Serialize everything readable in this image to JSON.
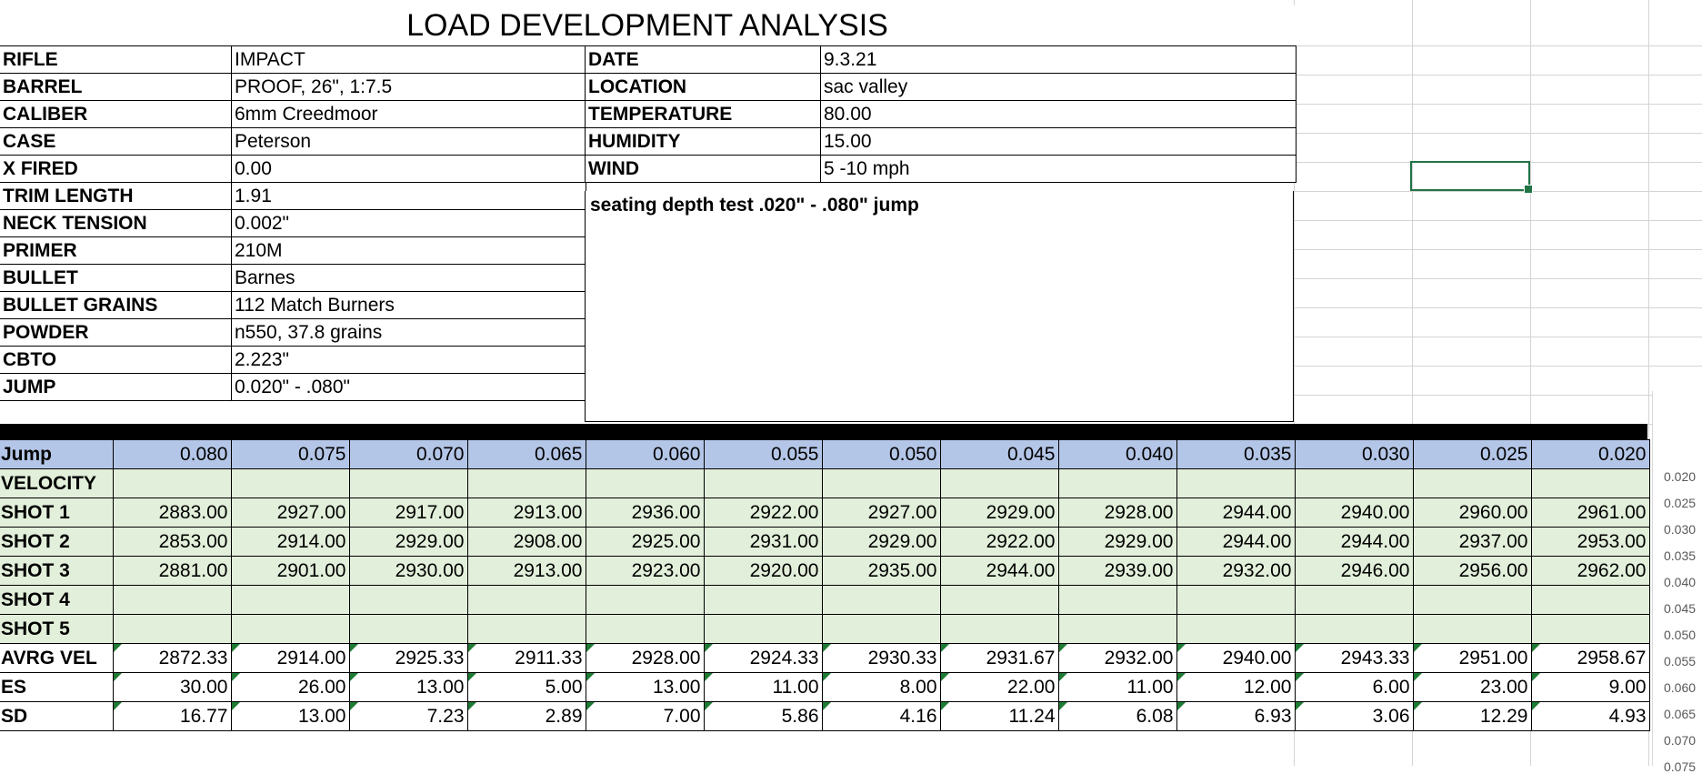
{
  "title": "LOAD DEVELOPMENT ANALYSIS",
  "info_left": [
    {
      "label": "RIFLE",
      "value": "IMPACT"
    },
    {
      "label": "BARREL",
      "value": "PROOF, 26\", 1:7.5"
    },
    {
      "label": "CALIBER",
      "value": "6mm Creedmoor"
    },
    {
      "label": "CASE",
      "value": "Peterson"
    },
    {
      "label": "X FIRED",
      "value": "0.00"
    },
    {
      "label": "TRIM LENGTH",
      "value": "1.91"
    },
    {
      "label": "NECK TENSION",
      "value": "0.002\""
    },
    {
      "label": "PRIMER",
      "value": "210M"
    },
    {
      "label": "BULLET",
      "value": "Barnes"
    },
    {
      "label": "BULLET GRAINS",
      "value": "112 Match Burners"
    },
    {
      "label": "POWDER",
      "value": "n550, 37.8 grains"
    },
    {
      "label": "CBTO",
      "value": "2.223\""
    },
    {
      "label": "JUMP",
      "value": "0.020\" - .080\""
    }
  ],
  "info_right": [
    {
      "label": "DATE",
      "value": "9.3.21"
    },
    {
      "label": "LOCATION",
      "value": "sac valley"
    },
    {
      "label": "TEMPERATURE",
      "value": "80.00"
    },
    {
      "label": "HUMIDITY",
      "value": "15.00"
    },
    {
      "label": "WIND",
      "value": "5 -10 mph"
    }
  ],
  "notes": "seating depth test .020\" - .080\" jump",
  "data_table": {
    "jump_label": "Jump",
    "jumps": [
      "0.080",
      "0.075",
      "0.070",
      "0.065",
      "0.060",
      "0.055",
      "0.050",
      "0.045",
      "0.040",
      "0.035",
      "0.030",
      "0.025",
      "0.020"
    ],
    "velocity_label": "VELOCITY",
    "shots": [
      {
        "label": "SHOT 1",
        "values": [
          "2883.00",
          "2927.00",
          "2917.00",
          "2913.00",
          "2936.00",
          "2922.00",
          "2927.00",
          "2929.00",
          "2928.00",
          "2944.00",
          "2940.00",
          "2960.00",
          "2961.00"
        ]
      },
      {
        "label": "SHOT 2",
        "values": [
          "2853.00",
          "2914.00",
          "2929.00",
          "2908.00",
          "2925.00",
          "2931.00",
          "2929.00",
          "2922.00",
          "2929.00",
          "2944.00",
          "2944.00",
          "2937.00",
          "2953.00"
        ]
      },
      {
        "label": "SHOT 3",
        "values": [
          "2881.00",
          "2901.00",
          "2930.00",
          "2913.00",
          "2923.00",
          "2920.00",
          "2935.00",
          "2944.00",
          "2939.00",
          "2932.00",
          "2946.00",
          "2956.00",
          "2962.00"
        ]
      },
      {
        "label": "SHOT 4",
        "values": [
          "",
          "",
          "",
          "",
          "",
          "",
          "",
          "",
          "",
          "",
          "",
          "",
          ""
        ]
      },
      {
        "label": "SHOT 5",
        "values": [
          "",
          "",
          "",
          "",
          "",
          "",
          "",
          "",
          "",
          "",
          "",
          "",
          ""
        ]
      }
    ],
    "stats": [
      {
        "label": "AVRG VEL",
        "values": [
          "2872.33",
          "2914.00",
          "2925.33",
          "2911.33",
          "2928.00",
          "2924.33",
          "2930.33",
          "2931.67",
          "2932.00",
          "2940.00",
          "2943.33",
          "2951.00",
          "2958.67"
        ]
      },
      {
        "label": "ES",
        "values": [
          "30.00",
          "26.00",
          "13.00",
          "5.00",
          "13.00",
          "11.00",
          "8.00",
          "22.00",
          "11.00",
          "12.00",
          "6.00",
          "23.00",
          "9.00"
        ]
      },
      {
        "label": "SD",
        "values": [
          "16.77",
          "13.00",
          "7.23",
          "2.89",
          "7.00",
          "5.86",
          "4.16",
          "11.24",
          "6.08",
          "6.93",
          "3.06",
          "12.29",
          "4.93"
        ]
      }
    ]
  },
  "chart_axis_ticks": [
    "0.020",
    "0.025",
    "0.030",
    "0.035",
    "0.040",
    "0.045",
    "0.050",
    "0.055",
    "0.060",
    "0.065",
    "0.070",
    "0.075"
  ],
  "colors": {
    "jump_row_bg": "#b4c6e7",
    "velocity_rows_bg": "#e2efda",
    "selection": "#217346",
    "error_triangle": "#1e7b34"
  }
}
